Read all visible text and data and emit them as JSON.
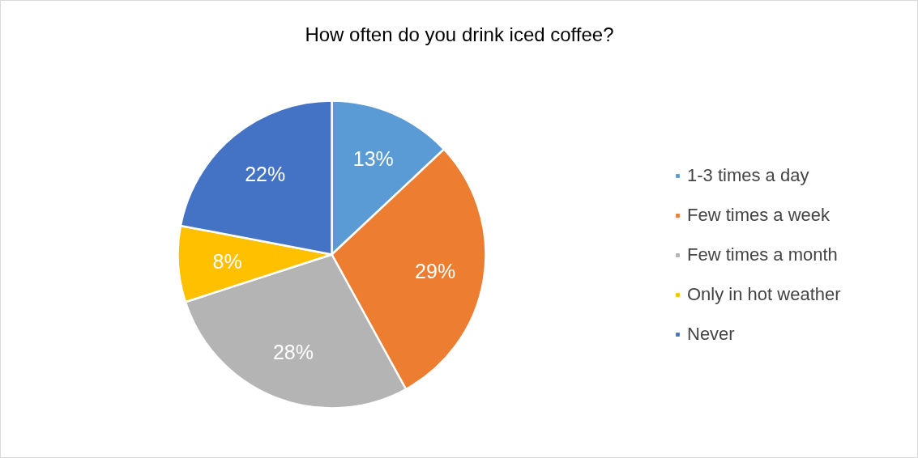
{
  "chart_data": {
    "type": "pie",
    "title": "How often do you drink iced coffee?",
    "categories": [
      "1-3 times a day",
      "Few times a week",
      "Few times a month",
      "Only in hot weather",
      "Never"
    ],
    "values": [
      13,
      29,
      28,
      8,
      22
    ],
    "value_labels": [
      "13%",
      "29%",
      "28%",
      "8%",
      "22%"
    ],
    "colors": [
      "#5b9bd5",
      "#ed7d31",
      "#b4b4b4",
      "#ffc000",
      "#4472c4"
    ],
    "legend": "right"
  }
}
